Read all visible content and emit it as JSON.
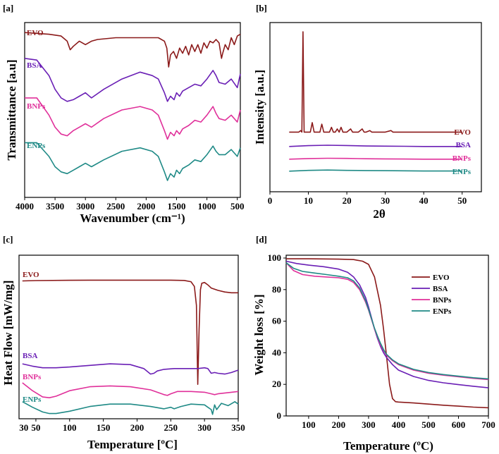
{
  "colors": {
    "EVO": "#8b1a1a",
    "BSA": "#6a1fb5",
    "BNPs": "#e0309a",
    "ENPs": "#1f8a86"
  },
  "chart_data": [
    {
      "id": "a",
      "panel_label": "[a]",
      "type": "line",
      "title": "",
      "xlabel": "Wavenumber (cm⁻¹)",
      "ylabel": "Transmittance  [a.u]",
      "xlim": [
        4000,
        450
      ],
      "ylim": [
        0,
        100
      ],
      "xticks": [
        4000,
        3500,
        3000,
        2500,
        2000,
        1500,
        1000,
        500
      ],
      "series": [
        {
          "name": "EVO",
          "label": "EVO",
          "color": "#8b1a1a",
          "x": [
            4000,
            3600,
            3400,
            3300,
            3250,
            3200,
            3100,
            3000,
            2900,
            2800,
            2500,
            2000,
            1800,
            1700,
            1660,
            1630,
            1600,
            1550,
            1500,
            1450,
            1400,
            1350,
            1300,
            1250,
            1200,
            1150,
            1100,
            1050,
            1000,
            950,
            900,
            850,
            800,
            760,
            740,
            700,
            650,
            600,
            550,
            500,
            450
          ],
          "y": [
            95,
            94,
            93,
            90,
            85,
            87,
            90,
            88,
            90,
            91,
            92,
            92,
            92,
            90,
            86,
            75,
            82,
            84,
            80,
            86,
            83,
            87,
            82,
            88,
            84,
            88,
            83,
            89,
            86,
            90,
            89,
            91,
            89,
            80,
            83,
            88,
            85,
            92,
            88,
            93,
            94
          ]
        },
        {
          "name": "BSA",
          "label": "BSA",
          "color": "#6a1fb5",
          "x": [
            4000,
            3800,
            3600,
            3500,
            3400,
            3300,
            3200,
            3100,
            3000,
            2900,
            2700,
            2400,
            2100,
            1900,
            1800,
            1700,
            1650,
            1600,
            1540,
            1500,
            1450,
            1400,
            1300,
            1200,
            1100,
            1000,
            900,
            850,
            800,
            700,
            600,
            500,
            450
          ],
          "y": [
            80,
            79,
            70,
            62,
            57,
            55,
            56,
            58,
            60,
            57,
            62,
            68,
            72,
            70,
            68,
            60,
            55,
            58,
            56,
            60,
            58,
            61,
            63,
            65,
            64,
            68,
            73,
            70,
            66,
            65,
            68,
            63,
            71
          ]
        },
        {
          "name": "BNPs",
          "label": "BNPs",
          "color": "#e0309a",
          "x": [
            4000,
            3800,
            3600,
            3500,
            3400,
            3300,
            3200,
            3100,
            3000,
            2900,
            2700,
            2400,
            2100,
            1900,
            1800,
            1700,
            1650,
            1600,
            1540,
            1500,
            1450,
            1400,
            1300,
            1200,
            1100,
            1000,
            900,
            850,
            800,
            700,
            600,
            500,
            450
          ],
          "y": [
            57,
            57,
            47,
            40,
            36,
            35,
            38,
            40,
            42,
            40,
            45,
            50,
            52,
            50,
            47,
            38,
            33,
            37,
            35,
            38,
            36,
            39,
            41,
            44,
            43,
            47,
            52,
            48,
            45,
            44,
            47,
            43,
            50
          ]
        },
        {
          "name": "ENPs",
          "label": "ENPs",
          "color": "#1f8a86",
          "x": [
            4000,
            3800,
            3600,
            3500,
            3400,
            3300,
            3200,
            3100,
            3000,
            2900,
            2700,
            2400,
            2100,
            1900,
            1800,
            1700,
            1650,
            1600,
            1540,
            1500,
            1450,
            1400,
            1300,
            1200,
            1100,
            1000,
            900,
            850,
            800,
            700,
            600,
            500,
            450
          ],
          "y": [
            31,
            31,
            23,
            17,
            14,
            13,
            15,
            17,
            19,
            17,
            21,
            26,
            28,
            26,
            23,
            14,
            9,
            13,
            11,
            15,
            13,
            16,
            18,
            21,
            20,
            24,
            29,
            26,
            24,
            24,
            27,
            23,
            28
          ]
        }
      ]
    },
    {
      "id": "b",
      "panel_label": "[b]",
      "type": "line",
      "title": "",
      "xlabel": "2θ",
      "ylabel": "Intensity [a.u.]",
      "xlim": [
        0,
        55
      ],
      "ylim": [
        0,
        100
      ],
      "xticks": [
        0,
        10,
        20,
        30,
        40,
        50
      ],
      "series": [
        {
          "name": "EVO",
          "label": "EVO",
          "color": "#8b1a1a",
          "x": [
            5,
            7.5,
            8.0,
            8.3,
            8.6,
            8.9,
            9.3,
            10.5,
            11,
            11.5,
            13,
            13.5,
            14,
            15.5,
            16,
            16.5,
            17,
            17.5,
            18,
            18.5,
            19,
            20,
            21,
            21.5,
            22,
            23,
            24,
            24.5,
            25,
            26,
            26.5,
            27,
            30,
            31.5,
            32,
            35,
            40,
            45,
            50
          ],
          "y": [
            33,
            33,
            34,
            33,
            96,
            33,
            33,
            33,
            39,
            33,
            33,
            38,
            33,
            33,
            36,
            33,
            33,
            35,
            33,
            36,
            33,
            33,
            35,
            33,
            33,
            33,
            35,
            33,
            33,
            34,
            33,
            33,
            33,
            34,
            33,
            33,
            33,
            33,
            33
          ]
        },
        {
          "name": "BSA",
          "label": "BSA",
          "color": "#6a1fb5",
          "x": [
            5,
            10,
            15,
            20,
            25,
            30,
            35,
            40,
            45,
            50
          ],
          "y": [
            24,
            24.5,
            24.8,
            24.6,
            24.3,
            24.2,
            24.1,
            24.0,
            24.0,
            24.0
          ]
        },
        {
          "name": "BNPs",
          "label": "BNPs",
          "color": "#e0309a",
          "x": [
            5,
            10,
            15,
            20,
            25,
            30,
            35,
            40,
            45,
            50
          ],
          "y": [
            16,
            16.4,
            16.6,
            16.5,
            16.3,
            16.2,
            16.1,
            16.0,
            16.0,
            16.0
          ]
        },
        {
          "name": "ENPs",
          "label": "ENPs",
          "color": "#1f8a86",
          "x": [
            5,
            10,
            15,
            20,
            25,
            30,
            35,
            40,
            45,
            50
          ],
          "y": [
            8.5,
            9.0,
            9.2,
            9.0,
            8.9,
            8.8,
            8.7,
            8.6,
            8.6,
            8.6
          ]
        }
      ]
    },
    {
      "id": "c",
      "panel_label": "[c]",
      "type": "line",
      "title": "",
      "xlabel": "Temperature [ºC]",
      "ylabel": "Heat Flow [mW/mg]",
      "xlim": [
        25,
        350
      ],
      "ylim": [
        0,
        100
      ],
      "xticks": [
        50,
        100,
        150,
        200,
        250,
        300,
        350
      ],
      "xtick_labels_extra": [
        "30"
      ],
      "series": [
        {
          "name": "EVO",
          "label": "EVO",
          "color": "#8b1a1a",
          "x": [
            30,
            50,
            100,
            150,
            200,
            250,
            270,
            280,
            285,
            288,
            290,
            292,
            294,
            296,
            300,
            305,
            310,
            320,
            330,
            340,
            350
          ],
          "y": [
            85.5,
            85.7,
            85.9,
            86,
            86,
            86,
            85.8,
            85,
            82,
            70,
            20,
            55,
            80,
            84,
            84.5,
            83,
            81,
            79.5,
            78.5,
            78,
            78
          ]
        },
        {
          "name": "BSA",
          "label": "BSA",
          "color": "#6a1fb5",
          "x": [
            30,
            45,
            60,
            80,
            100,
            130,
            160,
            190,
            210,
            220,
            225,
            230,
            240,
            255,
            270,
            290,
            300,
            305,
            310,
            315,
            320,
            330,
            340,
            350
          ],
          "y": [
            33,
            31.5,
            30.5,
            30.5,
            31,
            32,
            33,
            32.5,
            30,
            26.5,
            27,
            28.5,
            29.5,
            30,
            30,
            30,
            30.5,
            30,
            27,
            27.5,
            27,
            26.5,
            27.5,
            29
          ]
        },
        {
          "name": "BNPs",
          "label": "BNPs",
          "color": "#e0309a",
          "x": [
            30,
            45,
            60,
            70,
            80,
            100,
            130,
            160,
            190,
            220,
            240,
            245,
            250,
            260,
            280,
            300,
            310,
            315,
            320,
            340,
            350
          ],
          "y": [
            21,
            16,
            12,
            11.5,
            12.5,
            16,
            18.5,
            19,
            18.5,
            16.5,
            13.5,
            13,
            14,
            15.5,
            15.5,
            15,
            14,
            13.5,
            14,
            15,
            15.5
          ]
        },
        {
          "name": "ENPs",
          "label": "ENPs",
          "color": "#1f8a86",
          "x": [
            30,
            45,
            60,
            70,
            80,
            100,
            130,
            160,
            190,
            220,
            240,
            250,
            255,
            265,
            280,
            300,
            305,
            310,
            312,
            315,
            318,
            325,
            335,
            345,
            350
          ],
          "y": [
            9,
            5.5,
            2.5,
            1.5,
            1.5,
            3,
            6,
            7.5,
            7.5,
            6,
            4.5,
            5.5,
            4.5,
            6,
            7.5,
            7,
            5.5,
            4,
            1,
            7,
            4,
            8,
            6.5,
            9,
            7.5
          ]
        }
      ]
    },
    {
      "id": "d",
      "panel_label": "[d]",
      "type": "line",
      "title": "",
      "xlabel": "Temperature (ºC)",
      "ylabel": "Weight loss [%]",
      "xlim": [
        25,
        700
      ],
      "ylim": [
        0,
        100
      ],
      "xticks": [
        100,
        200,
        300,
        400,
        500,
        600,
        700
      ],
      "yticks": [
        0,
        20,
        40,
        60,
        80,
        100
      ],
      "legend_position": "upper-right",
      "series": [
        {
          "name": "EVO",
          "label": "EVO",
          "color": "#8b1a1a",
          "x": [
            25,
            100,
            200,
            250,
            280,
            300,
            320,
            340,
            350,
            360,
            370,
            380,
            390,
            400,
            450,
            500,
            550,
            600,
            650,
            700
          ],
          "y": [
            99.5,
            99.5,
            99.3,
            99,
            98,
            96,
            88,
            70,
            55,
            38,
            20,
            11,
            9,
            8.8,
            8.2,
            7.5,
            6.8,
            6.2,
            5.6,
            5.2
          ]
        },
        {
          "name": "BSA",
          "label": "BSA",
          "color": "#6a1fb5",
          "x": [
            25,
            60,
            100,
            150,
            200,
            230,
            250,
            270,
            290,
            300,
            310,
            320,
            330,
            340,
            350,
            360,
            380,
            400,
            450,
            500,
            550,
            600,
            650,
            700
          ],
          "y": [
            98,
            96.5,
            95.5,
            94.5,
            93,
            91,
            88,
            83,
            75,
            69,
            62,
            55,
            49,
            44,
            40,
            37,
            32.5,
            29,
            25,
            22.5,
            21,
            19.8,
            18.8,
            17.8
          ]
        },
        {
          "name": "BNPs",
          "label": "BNPs",
          "color": "#e0309a",
          "x": [
            25,
            50,
            80,
            120,
            160,
            200,
            230,
            250,
            270,
            290,
            300,
            310,
            320,
            330,
            340,
            350,
            360,
            380,
            400,
            450,
            500,
            550,
            600,
            650,
            700
          ],
          "y": [
            97,
            92,
            89.5,
            88.5,
            88,
            87.5,
            86.5,
            84.5,
            80,
            72,
            67,
            61,
            55,
            50,
            45,
            41.5,
            38.5,
            35,
            32.5,
            29,
            27,
            25.8,
            24.8,
            23.8,
            23
          ]
        },
        {
          "name": "ENPs",
          "label": "ENPs",
          "color": "#1f8a86",
          "x": [
            25,
            50,
            80,
            120,
            160,
            200,
            230,
            250,
            270,
            290,
            300,
            310,
            320,
            330,
            340,
            350,
            360,
            380,
            400,
            450,
            500,
            550,
            600,
            650,
            700
          ],
          "y": [
            97,
            93.5,
            91.5,
            90.5,
            89.5,
            88.5,
            87.5,
            85.5,
            81,
            73,
            67.5,
            61.5,
            55.5,
            50.5,
            46,
            42,
            39,
            35.5,
            33,
            29.5,
            27.5,
            26.2,
            25.2,
            24.2,
            23.5
          ]
        }
      ]
    }
  ]
}
